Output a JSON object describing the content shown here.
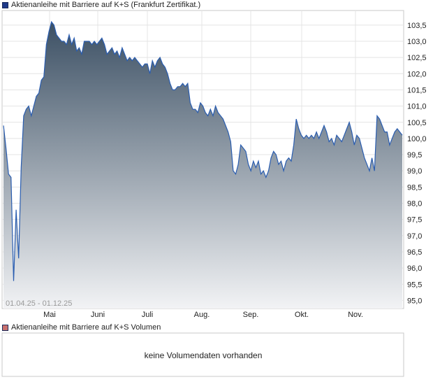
{
  "legend_price": {
    "label": "Aktienanleihe mit Barriere auf K+S  (Frankfurt Zertifikat.)",
    "color": "#1f3a8a"
  },
  "legend_volume": {
    "label": "Aktienanleihe mit Barriere auf K+S  Volumen",
    "color": "#c8706e"
  },
  "date_range": "01.04.25 - 01.12.25",
  "no_volume_text": "keine Volumendaten vorhanden",
  "chart_data": {
    "type": "area",
    "title": "",
    "xlabel": "",
    "ylabel": "",
    "x_ticks": [
      "Mai",
      "Juni",
      "Juli",
      "Aug.",
      "Sep.",
      "Okt.",
      "Nov."
    ],
    "y_ticks": [
      "103,5",
      "103,0",
      "102,5",
      "102,0",
      "101,5",
      "101,0",
      "100,5",
      "100,0",
      "99,5",
      "99,0",
      "98,5",
      "98,0",
      "97,5",
      "97,0",
      "96,5",
      "96,0",
      "95,5",
      "95,0"
    ],
    "ylim": [
      94.75,
      103.95
    ],
    "grid": true,
    "line_color": "#2a5db0",
    "fill_top_color": "#3c5064",
    "fill_bottom_color": "#f2f3f5",
    "series": [
      {
        "values": [
          100.4,
          99.7,
          98.9,
          98.8,
          95.6,
          97.8,
          96.3,
          99.1,
          100.7,
          100.9,
          101.0,
          100.7,
          101.0,
          101.3,
          101.4,
          101.8,
          101.9,
          102.9,
          103.3,
          103.6,
          103.5,
          103.2,
          103.1,
          103.0,
          103.0,
          102.9,
          103.2,
          102.9,
          103.1,
          102.7,
          102.8,
          102.6,
          103.0,
          103.0,
          103.0,
          102.9,
          103.0,
          102.9,
          103.0,
          103.1,
          102.9,
          102.6,
          102.7,
          102.8,
          102.6,
          102.7,
          102.5,
          102.8,
          102.6,
          102.4,
          102.5,
          102.4,
          102.5,
          102.4,
          102.3,
          102.2,
          102.3,
          102.3,
          102.0,
          102.4,
          102.2,
          102.4,
          102.5,
          102.3,
          102.2,
          102.0,
          101.7,
          101.5,
          101.5,
          101.6,
          101.6,
          101.7,
          101.6,
          101.7,
          101.1,
          100.9,
          100.9,
          100.8,
          101.1,
          101.0,
          100.8,
          100.7,
          100.9,
          100.7,
          101.0,
          100.8,
          100.7,
          100.6,
          100.4,
          100.2,
          99.9,
          99.0,
          98.9,
          99.2,
          99.8,
          99.7,
          99.6,
          99.2,
          99.0,
          99.3,
          99.1,
          99.3,
          98.9,
          99.0,
          98.8,
          99.0,
          99.4,
          99.6,
          99.5,
          99.2,
          99.3,
          99.0,
          99.3,
          99.4,
          99.3,
          99.8,
          100.6,
          100.3,
          100.1,
          100.0,
          100.1,
          100.0,
          100.1,
          100.0,
          100.2,
          100.0,
          100.2,
          100.4,
          100.2,
          99.9,
          100.0,
          99.8,
          100.1,
          100.0,
          99.9,
          100.1,
          100.3,
          100.5,
          100.2,
          99.8,
          100.1,
          100.0,
          99.7,
          99.4,
          99.2,
          99.0,
          99.4,
          99.0,
          100.7,
          100.6,
          100.4,
          100.2,
          100.2,
          99.8,
          100.0,
          100.2,
          100.3,
          100.2,
          100.1
        ]
      }
    ]
  }
}
